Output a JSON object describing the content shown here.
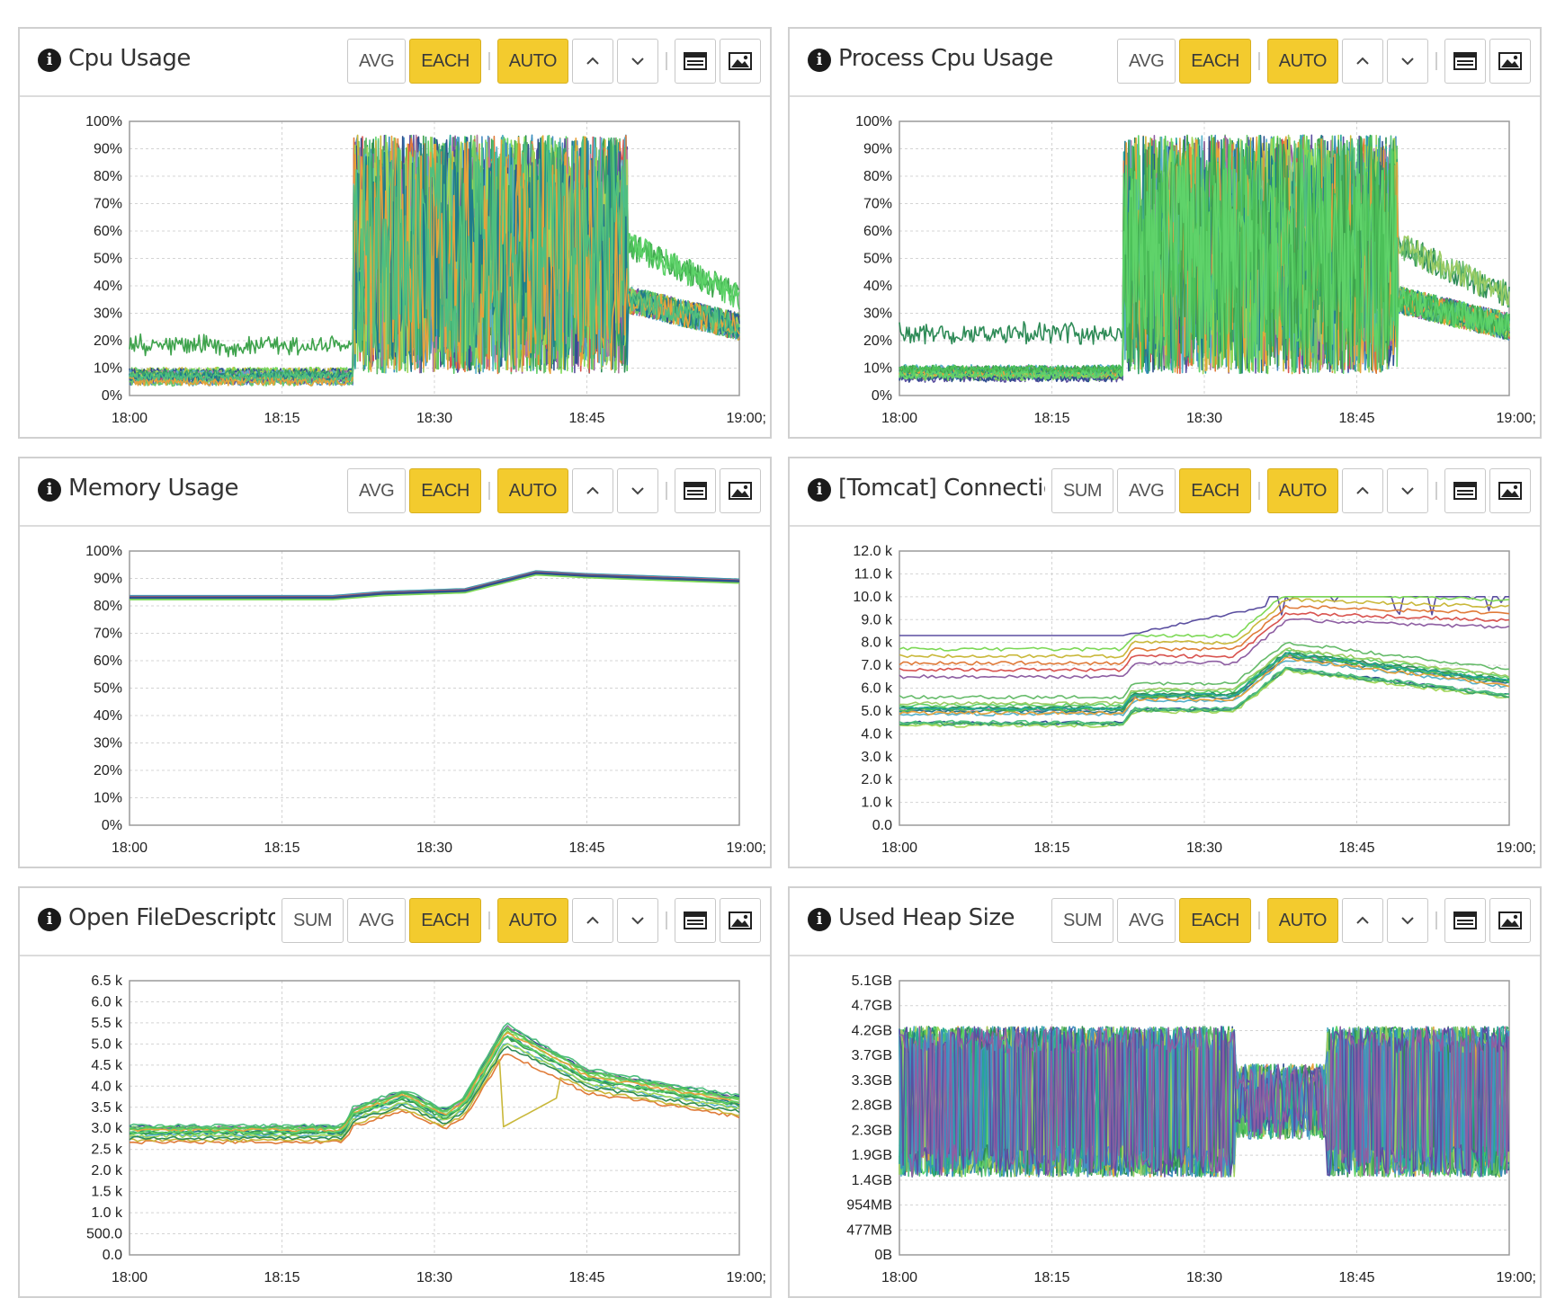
{
  "buttons": {
    "sum": "SUM",
    "avg": "AVG",
    "each": "EACH",
    "auto": "AUTO",
    "up": "⌃",
    "down": "⌄",
    "table_icon": "table-view-icon",
    "image_icon": "image-export-icon"
  },
  "x_ticks": [
    "18:00",
    "18:15",
    "18:30",
    "18:45",
    "19:00"
  ],
  "panels": [
    {
      "title": "Cpu Usage",
      "has_sum": false,
      "y_ticks": [
        "100%",
        "90%",
        "80%",
        "70%",
        "60%",
        "50%",
        "40%",
        "30%",
        "20%",
        "10%",
        "0%"
      ],
      "chart_data": {
        "type": "line",
        "x_range": [
          "18:00",
          "19:00"
        ],
        "y_range": [
          0,
          100
        ],
        "unit": "%",
        "pattern": "cpu",
        "series_count": 24,
        "phases": [
          {
            "from": "18:00",
            "to": "18:22",
            "approx": 7
          },
          {
            "from": "18:22",
            "to": "18:49",
            "approx": "5-95 oscillating"
          },
          {
            "from": "18:49",
            "to": "19:00",
            "approx": "35 declining to 25"
          }
        ]
      }
    },
    {
      "title": "Process Cpu Usage",
      "has_sum": false,
      "y_ticks": [
        "100%",
        "90%",
        "80%",
        "70%",
        "60%",
        "50%",
        "40%",
        "30%",
        "20%",
        "10%",
        "0%"
      ],
      "chart_data": {
        "type": "line",
        "x_range": [
          "18:00",
          "19:00"
        ],
        "y_range": [
          0,
          100
        ],
        "unit": "%",
        "pattern": "cpu",
        "series_count": 24,
        "phases": [
          {
            "from": "18:00",
            "to": "18:22",
            "approx": 8
          },
          {
            "from": "18:22",
            "to": "18:49",
            "approx": "5-95 oscillating"
          },
          {
            "from": "18:49",
            "to": "19:00",
            "approx": "35 declining to 25"
          }
        ]
      }
    },
    {
      "title": "Memory Usage",
      "has_sum": false,
      "y_ticks": [
        "100%",
        "90%",
        "80%",
        "70%",
        "60%",
        "50%",
        "40%",
        "30%",
        "20%",
        "10%",
        "0%"
      ],
      "chart_data": {
        "type": "line",
        "x_range": [
          "18:00",
          "19:00"
        ],
        "y_range": [
          0,
          100
        ],
        "unit": "%",
        "pattern": "memory",
        "series_count": 10,
        "points": [
          [
            "18:00",
            83
          ],
          [
            "18:20",
            83
          ],
          [
            "18:25",
            84.5
          ],
          [
            "18:33",
            85.5
          ],
          [
            "18:40",
            92
          ],
          [
            "18:45",
            91
          ],
          [
            "19:00",
            89
          ]
        ]
      }
    },
    {
      "title": "[Tomcat] Connectio",
      "has_sum": true,
      "y_ticks": [
        "12.0 k",
        "11.0 k",
        "10.0 k",
        "9.0 k",
        "8.0 k",
        "7.0 k",
        "6.0 k",
        "5.0 k",
        "4.0 k",
        "3.0 k",
        "2.0 k",
        "1.0 k",
        "0.0"
      ],
      "chart_data": {
        "type": "line",
        "x_range": [
          "18:00",
          "19:00"
        ],
        "y_range": [
          0,
          12000
        ],
        "pattern": "connections",
        "series_count": 22,
        "points": [
          [
            "18:00",
            5000
          ],
          [
            "18:22",
            5000
          ],
          [
            "18:23",
            5600
          ],
          [
            "18:33",
            5600
          ],
          [
            "18:38",
            7400
          ],
          [
            "19:00",
            6200
          ]
        ],
        "top_series": {
          "from": 8300,
          "to": 10000
        }
      }
    },
    {
      "title": "Open FileDescriptor",
      "has_sum": true,
      "y_ticks": [
        "6.5 k",
        "6.0 k",
        "5.5 k",
        "5.0 k",
        "4.5 k",
        "4.0 k",
        "3.5 k",
        "3.0 k",
        "2.5 k",
        "2.0 k",
        "1.5 k",
        "1.0 k",
        "500.0",
        "0.0"
      ],
      "chart_data": {
        "type": "line",
        "x_range": [
          "18:00",
          "19:00"
        ],
        "y_range": [
          0,
          6500
        ],
        "pattern": "filedescriptor",
        "series_count": 16,
        "points": [
          [
            "18:00",
            2850
          ],
          [
            "18:21",
            2850
          ],
          [
            "18:22",
            3250
          ],
          [
            "18:27",
            3650
          ],
          [
            "18:31",
            3200
          ],
          [
            "18:33",
            3500
          ],
          [
            "18:37",
            5100
          ],
          [
            "18:45",
            4100
          ],
          [
            "19:00",
            3500
          ]
        ]
      }
    },
    {
      "title": "Used Heap Size",
      "has_sum": true,
      "y_ticks": [
        "5.1GB",
        "4.7GB",
        "4.2GB",
        "3.7GB",
        "3.3GB",
        "2.8GB",
        "2.3GB",
        "1.9GB",
        "1.4GB",
        "954MB",
        "477MB",
        "0B"
      ],
      "chart_data": {
        "type": "line",
        "x_range": [
          "18:00",
          "19:00"
        ],
        "y_range": [
          "0B",
          "5.1GB"
        ],
        "pattern": "heap",
        "series_count": 20,
        "band": {
          "low": "1.4GB",
          "high": "4.2GB"
        }
      }
    }
  ],
  "palette": [
    "#3fa34d",
    "#4cc159",
    "#5fd36a",
    "#2e8b57",
    "#66bb6a",
    "#9ccc65",
    "#26a69a",
    "#3b8fbf",
    "#4a90c2",
    "#5b4fa0",
    "#8e5ea2",
    "#d9534f",
    "#e07b39",
    "#c9b83a",
    "#7ed957",
    "#2f4f8f",
    "#b07aa1",
    "#55b0c9",
    "#6bc96b",
    "#a3d65a",
    "#38a169",
    "#1f7a8c",
    "#e6a23c",
    "#4fbf7f"
  ]
}
